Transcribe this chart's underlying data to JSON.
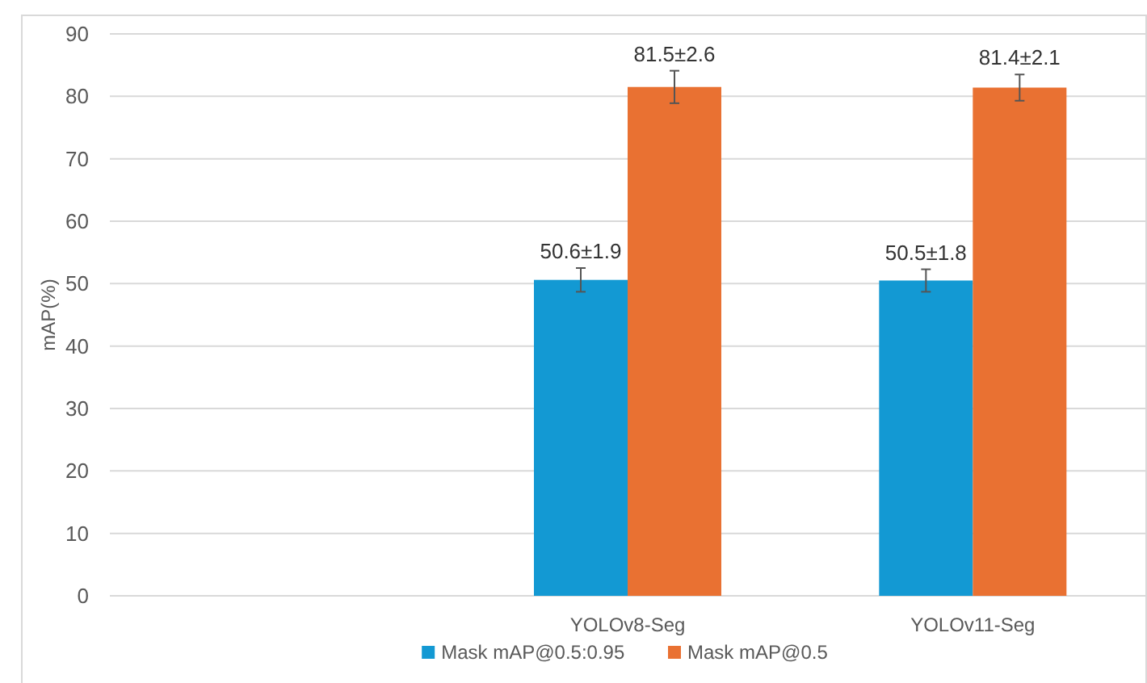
{
  "chart_data": {
    "type": "bar",
    "ylabel": "mAP(%)",
    "categories": [
      null,
      "YOLOv8-Seg",
      "YOLOv11-Seg"
    ],
    "series": [
      {
        "name": "Mask mAP@0.5:0.95",
        "color": "#1399d3",
        "values": [
          null,
          50.6,
          50.5
        ],
        "errors": [
          null,
          1.9,
          1.8
        ],
        "value_labels": [
          null,
          "50.6±1.9",
          "50.5±1.8"
        ]
      },
      {
        "name": "Mask mAP@0.5",
        "color": "#e97132",
        "values": [
          null,
          81.5,
          81.4
        ],
        "errors": [
          null,
          2.6,
          2.1
        ],
        "value_labels": [
          null,
          "81.5±2.6",
          "81.4±2.1"
        ]
      }
    ],
    "ylim": [
      0,
      90
    ],
    "yticks": [
      0,
      10,
      20,
      30,
      40,
      50,
      60,
      70,
      80,
      90
    ],
    "grid": "y",
    "legend": "bottom"
  }
}
